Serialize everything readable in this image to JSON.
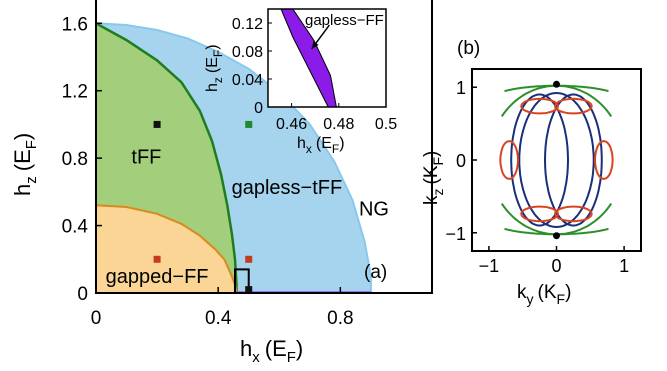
{
  "colors": {
    "ng": "#a6d4ee",
    "tff": "#a3cf7c",
    "gapped_ff": "#fad596",
    "gapless_ff": "#8a1be8",
    "boundary_green": "#1e7e1e",
    "boundary_orange": "#d88a1f",
    "boundary_ng": "#87c9ec",
    "label_blue": "#1a2a7a",
    "marker_black": "#111111",
    "marker_green": "#1d8a2d",
    "marker_red": "#c83a1e",
    "contour_green": "#2b8f2b",
    "contour_red": "#d8441f",
    "contour_blue": "#1a2f7a"
  },
  "chart_data": [
    {
      "panel": "a",
      "type": "area",
      "panel_label": "(a)",
      "xlabel": "h",
      "xlabel_sub": "x",
      "xlabel_unit": "(E",
      "xlabel_unit_sub": "F",
      "xlabel_close": ")",
      "ylabel": "h",
      "ylabel_sub": "z",
      "ylabel_unit": "(E",
      "ylabel_unit_sub": "F",
      "ylabel_close": ")",
      "xlim": [
        0,
        1.1
      ],
      "ylim": [
        0,
        1.75
      ],
      "xticks": [
        0,
        0.4,
        0.8
      ],
      "xtick_labels": [
        "0",
        "0.4",
        "0.8"
      ],
      "yticks": [
        0,
        0.4,
        0.8,
        1.2,
        1.6
      ],
      "ytick_labels": [
        "0",
        "0.4",
        "0.8",
        "1.2",
        "1.6"
      ],
      "regions": [
        {
          "label": "NG",
          "color_key": "ng",
          "label_color_key": "label_blue",
          "label_at": [
            0.91,
            0.5
          ]
        },
        {
          "label": "tFF",
          "color_key": "tff",
          "label_color_key": "label_blue",
          "label_at": [
            0.165,
            0.81
          ]
        },
        {
          "label": "gapless−tFF",
          "color_key": "ng",
          "label_color_key": "label_blue",
          "label_at": [
            0.625,
            0.63
          ]
        },
        {
          "label": "gapped−FF",
          "color_key": "gapped_ff",
          "label_color_key": "label_blue",
          "label_at": [
            0.2,
            0.1
          ]
        }
      ],
      "ng_boundary": [
        [
          0,
          1.6
        ],
        [
          0.1,
          1.59
        ],
        [
          0.2,
          1.56
        ],
        [
          0.3,
          1.51
        ],
        [
          0.4,
          1.43
        ],
        [
          0.5,
          1.33
        ],
        [
          0.6,
          1.19
        ],
        [
          0.7,
          1.0
        ],
        [
          0.78,
          0.78
        ],
        [
          0.84,
          0.55
        ],
        [
          0.88,
          0.3
        ],
        [
          0.9,
          0.1
        ],
        [
          0.9,
          0
        ]
      ],
      "tff_boundary": [
        [
          0,
          1.6
        ],
        [
          0.1,
          1.5
        ],
        [
          0.2,
          1.38
        ],
        [
          0.28,
          1.25
        ],
        [
          0.34,
          1.08
        ],
        [
          0.38,
          0.9
        ],
        [
          0.41,
          0.7
        ],
        [
          0.43,
          0.52
        ],
        [
          0.445,
          0.35
        ],
        [
          0.455,
          0.2
        ],
        [
          0.46,
          0.05
        ],
        [
          0.46,
          0
        ]
      ],
      "gapped_boundary": [
        [
          0,
          0.52
        ],
        [
          0.1,
          0.51
        ],
        [
          0.2,
          0.47
        ],
        [
          0.28,
          0.41
        ],
        [
          0.34,
          0.34
        ],
        [
          0.39,
          0.26
        ],
        [
          0.42,
          0.2
        ],
        [
          0.44,
          0.12
        ],
        [
          0.455,
          0.05
        ],
        [
          0.46,
          0
        ]
      ],
      "gapless_ff_line": [
        [
          0.46,
          0
        ],
        [
          0.9,
          0
        ]
      ],
      "zoom_box": {
        "x": [
          0.455,
          0.5
        ],
        "y": [
          0,
          0.14
        ]
      },
      "markers": [
        {
          "x": 0.2,
          "y": 1.0,
          "color_key": "marker_black"
        },
        {
          "x": 0.5,
          "y": 1.0,
          "color_key": "marker_green"
        },
        {
          "x": 0.2,
          "y": 0.2,
          "color_key": "marker_red"
        },
        {
          "x": 0.5,
          "y": 0.2,
          "color_key": "marker_red"
        },
        {
          "x": 0.5,
          "y": 0.02,
          "color_key": "marker_black"
        }
      ]
    },
    {
      "panel": "a-inset",
      "type": "area",
      "xlabel": "h",
      "xlabel_sub": "x",
      "xlabel_unit": "(E",
      "xlabel_unit_sub": "F",
      "xlabel_close": ")",
      "ylabel": "h",
      "ylabel_sub": "z",
      "ylabel_unit": "(E",
      "ylabel_unit_sub": "F",
      "ylabel_close": ")",
      "xlim": [
        0.45,
        0.5
      ],
      "ylim": [
        0,
        0.14
      ],
      "xticks": [
        0.46,
        0.48,
        0.5
      ],
      "xtick_labels": [
        "0.46",
        "0.48",
        "0.5"
      ],
      "yticks": [
        0,
        0.04,
        0.08,
        0.12
      ],
      "ytick_labels": [
        "0",
        "0.04",
        "0.08",
        "0.12"
      ],
      "region_label": "gapless−FF",
      "region_polygon": [
        [
          0.4555,
          0.14
        ],
        [
          0.4605,
          0.14
        ],
        [
          0.4695,
          0.095
        ],
        [
          0.4765,
          0.045
        ],
        [
          0.479,
          0
        ],
        [
          0.4755,
          0
        ],
        [
          0.468,
          0.05
        ],
        [
          0.4605,
          0.1
        ]
      ],
      "annotation_arrow": {
        "from": [
          0.476,
          0.117
        ],
        "to": [
          0.4685,
          0.083
        ]
      }
    },
    {
      "panel": "b",
      "type": "line",
      "panel_label": "(b)",
      "xlabel": "k",
      "xlabel_sub": "y",
      "xlabel_unit": "(K",
      "xlabel_unit_sub": "F",
      "xlabel_close": ")",
      "ylabel": "k",
      "ylabel_sub": "z",
      "ylabel_unit": "(K",
      "ylabel_unit_sub": "F",
      "ylabel_close": ")",
      "xlim": [
        -1.25,
        1.25
      ],
      "ylim": [
        -1.25,
        1.25
      ],
      "xticks": [
        -1,
        0,
        1
      ],
      "xtick_labels": [
        "−1",
        "0",
        "1"
      ],
      "yticks": [
        -1,
        0,
        1
      ],
      "ytick_labels": [
        "−1",
        "0",
        "1"
      ],
      "points": [
        [
          0,
          1.04
        ],
        [
          0,
          -1.04
        ]
      ],
      "series": [
        {
          "color_key": "contour_green",
          "shape": "outer_arcs"
        },
        {
          "color_key": "contour_red",
          "shape": "pockets_and_loops"
        },
        {
          "color_key": "contour_blue",
          "shape": "lens_contours"
        }
      ]
    }
  ]
}
